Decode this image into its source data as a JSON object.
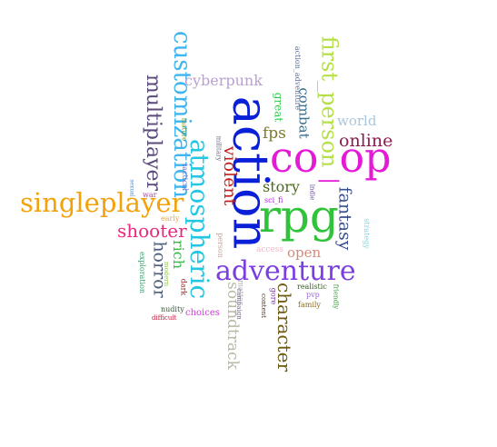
{
  "words": [
    {
      "text": "action",
      "color": "#0a1fd8",
      "size": 54,
      "rot": 90
    },
    {
      "text": "co_op",
      "color": "#e51ad6",
      "size": 46,
      "rot": 0
    },
    {
      "text": "rpg",
      "color": "#2fc23a",
      "size": 50,
      "rot": 0
    },
    {
      "text": "adventure",
      "color": "#7b3fe0",
      "size": 30,
      "rot": 0
    },
    {
      "text": "singleplayer",
      "color": "#f2a20a",
      "size": 29,
      "rot": 0
    },
    {
      "text": "atmospheric",
      "color": "#24c7e2",
      "size": 28,
      "rot": 90
    },
    {
      "text": "customization",
      "color": "#3fb4ef",
      "size": 26,
      "rot": 90
    },
    {
      "text": "first_person",
      "color": "#b6e04a",
      "size": 24,
      "rot": 90
    },
    {
      "text": "multiplayer",
      "color": "#5b4a7a",
      "size": 22,
      "rot": 90
    },
    {
      "text": "online",
      "color": "#8a1a52",
      "size": 19,
      "rot": 0
    },
    {
      "text": "shooter",
      "color": "#e8287e",
      "size": 20,
      "rot": 0
    },
    {
      "text": "character",
      "color": "#6e5a10",
      "size": 20,
      "rot": 90
    },
    {
      "text": "fantasy",
      "color": "#3a4f8c",
      "size": 19,
      "rot": 90
    },
    {
      "text": "violent",
      "color": "#c21f1f",
      "size": 19,
      "rot": 90
    },
    {
      "text": "horror",
      "color": "#4c5d7a",
      "size": 19,
      "rot": 90
    },
    {
      "text": "soundtrack",
      "color": "#b9b9a6",
      "size": 17,
      "rot": 90
    },
    {
      "text": "cyberpunk",
      "color": "#b9a0d0",
      "size": 16,
      "rot": 0
    },
    {
      "text": "story",
      "color": "#4a6a1e",
      "size": 16,
      "rot": 0
    },
    {
      "text": "fps",
      "color": "#7c7a2e",
      "size": 17,
      "rot": 0
    },
    {
      "text": "world",
      "color": "#a9c6dc",
      "size": 15,
      "rot": 0
    },
    {
      "text": "combat",
      "color": "#3a6f8c",
      "size": 15,
      "rot": 90
    },
    {
      "text": "rich",
      "color": "#38b848",
      "size": 16,
      "rot": 90
    },
    {
      "text": "open",
      "color": "#d48a7a",
      "size": 15,
      "rot": 0
    },
    {
      "text": "great",
      "color": "#2ccf4a",
      "size": 12,
      "rot": 90
    },
    {
      "text": "action_adventure",
      "color": "#5a6fa0",
      "size": 8,
      "rot": 90
    },
    {
      "text": "tactical",
      "color": "#7a6acf",
      "size": 8,
      "rot": 90
    },
    {
      "text": "military",
      "color": "#6a6a80",
      "size": 7,
      "rot": 90
    },
    {
      "text": "mature",
      "color": "#6e8c1a",
      "size": 7,
      "rot": 90
    },
    {
      "text": "indie",
      "color": "#6a4aa0",
      "size": 7,
      "rot": 90
    },
    {
      "text": "sci_fi",
      "color": "#b01adf",
      "size": 8,
      "rot": 0
    },
    {
      "text": "strategy",
      "color": "#7ad8e8",
      "size": 8,
      "rot": 90
    },
    {
      "text": "war",
      "color": "#a64aa0",
      "size": 8,
      "rot": 0
    },
    {
      "text": "early",
      "color": "#e0a85a",
      "size": 8,
      "rot": 0
    },
    {
      "text": "access",
      "color": "#f2b8c8",
      "size": 9,
      "rot": 0
    },
    {
      "text": "sexual",
      "color": "#4a8ad0",
      "size": 6,
      "rot": 90
    },
    {
      "text": "exploration",
      "color": "#3aa06a",
      "size": 8,
      "rot": 90
    },
    {
      "text": "modern",
      "color": "#8ad03a",
      "size": 7,
      "rot": 90
    },
    {
      "text": "dark",
      "color": "#a01a1a",
      "size": 8,
      "rot": 90
    },
    {
      "text": "person",
      "color": "#c0a8a0",
      "size": 8,
      "rot": 90
    },
    {
      "text": "matter",
      "color": "#b0b0b0",
      "size": 8,
      "rot": 90
    },
    {
      "text": "campaign",
      "color": "#7a6a8a",
      "size": 7,
      "rot": 90
    },
    {
      "text": "content",
      "color": "#4a3a2a",
      "size": 7,
      "rot": 90
    },
    {
      "text": "gore",
      "color": "#7a3aa0",
      "size": 8,
      "rot": 90
    },
    {
      "text": "realistic",
      "color": "#3a5a2a",
      "size": 8,
      "rot": 0
    },
    {
      "text": "pvp",
      "color": "#a06ad8",
      "size": 8,
      "rot": 0
    },
    {
      "text": "family",
      "color": "#8a6a1a",
      "size": 8,
      "rot": 0
    },
    {
      "text": "friendly",
      "color": "#3aa03a",
      "size": 7,
      "rot": 90
    },
    {
      "text": "nudity",
      "color": "#3a5a3a",
      "size": 8,
      "rot": 0
    },
    {
      "text": "choices",
      "color": "#d03ad8",
      "size": 10,
      "rot": 0
    },
    {
      "text": "difficult",
      "color": "#c01a3a",
      "size": 7,
      "rot": 0
    }
  ]
}
